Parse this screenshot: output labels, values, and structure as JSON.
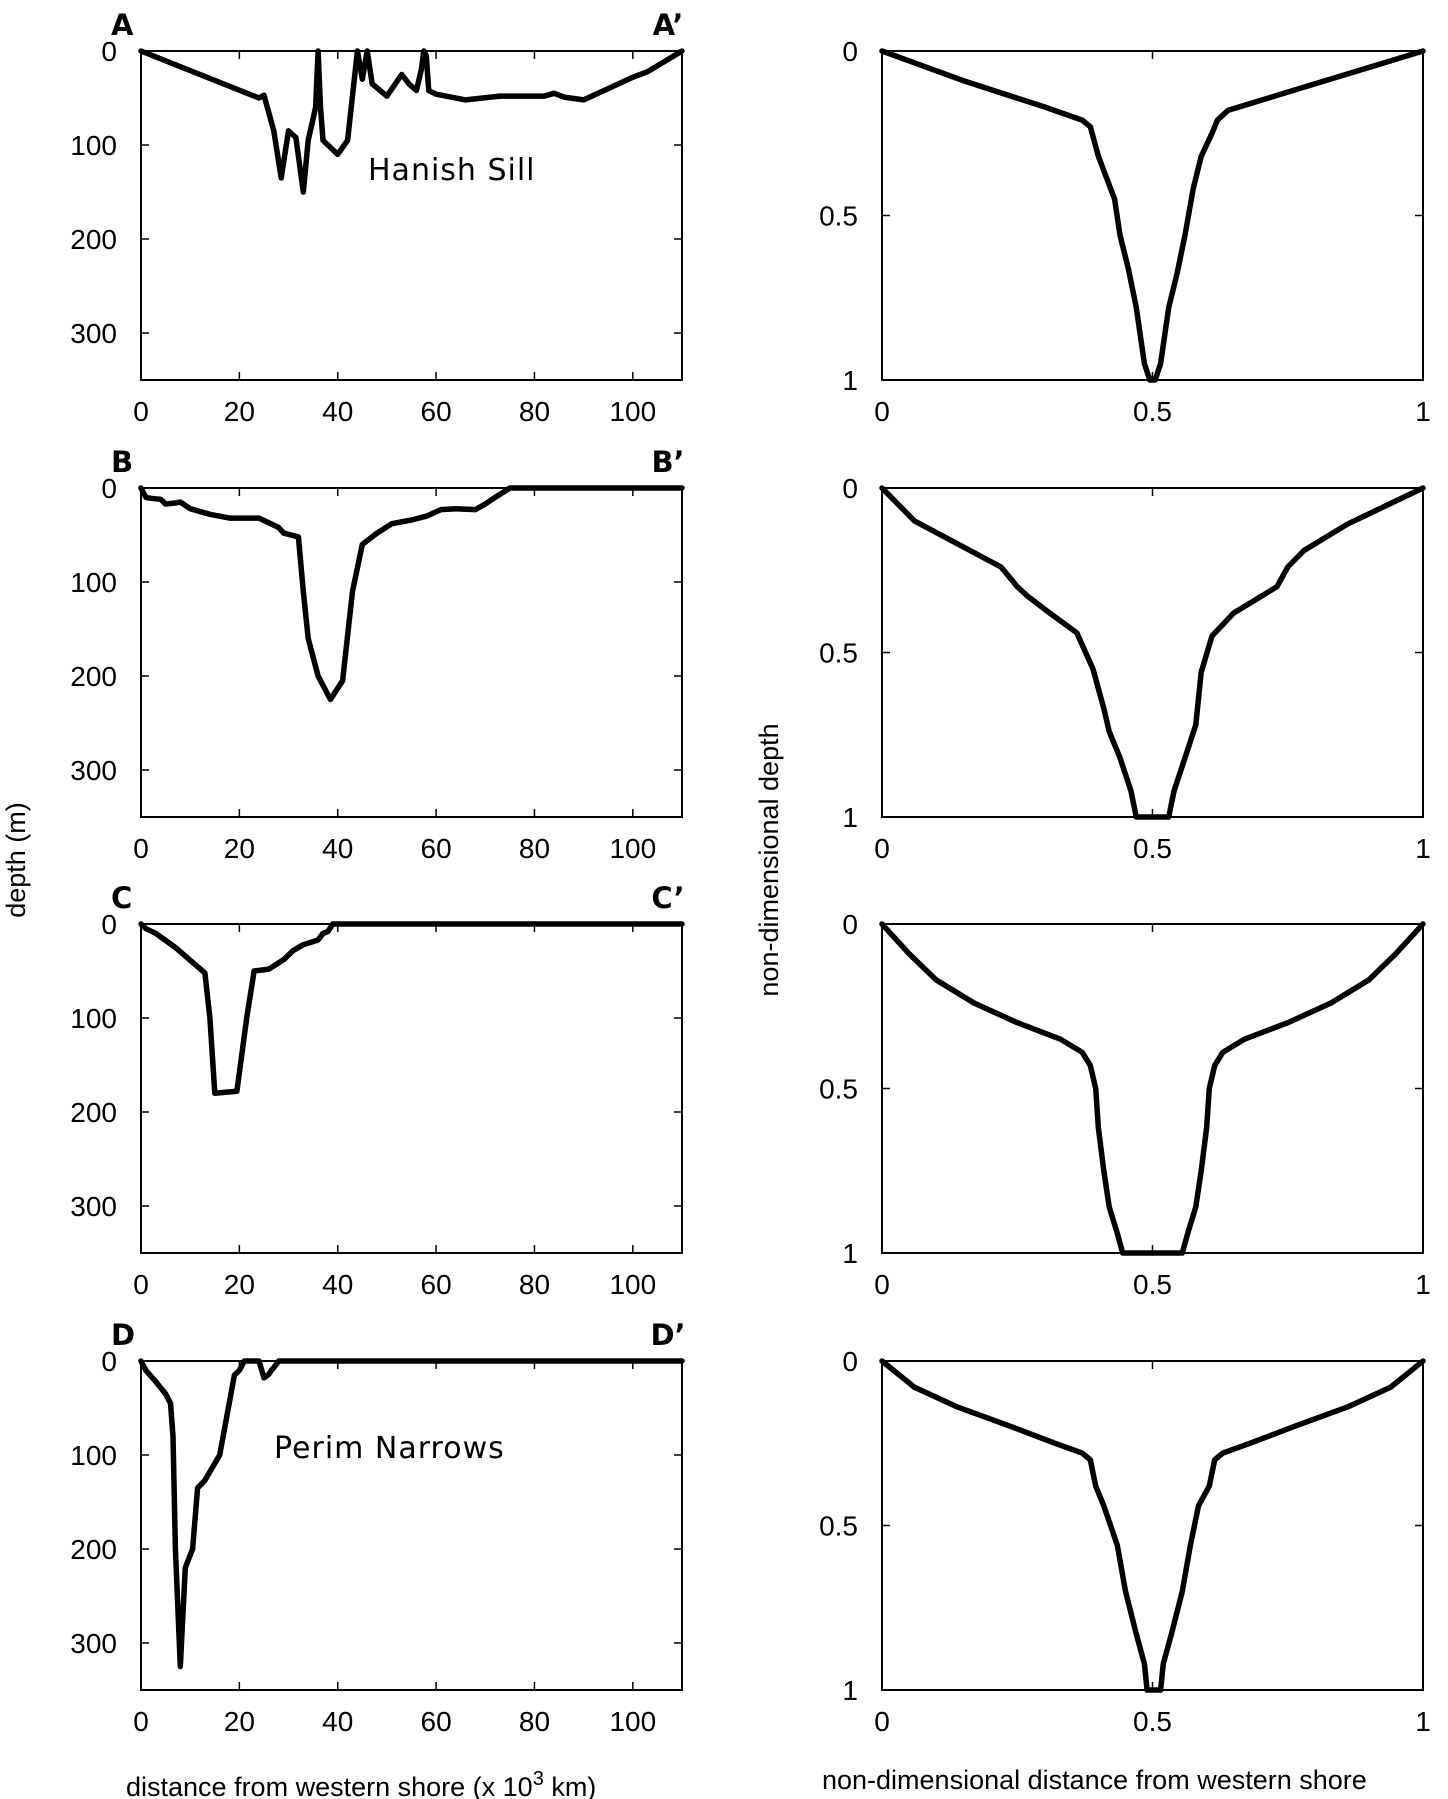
{
  "chart_data": [
    {
      "type": "line",
      "panel": "left",
      "row": 0,
      "corner_labels": [
        "A",
        "A’"
      ],
      "annotation": "Hanish Sill",
      "xlim": [
        0,
        110
      ],
      "ylim": [
        0,
        350
      ],
      "y_inverted": true,
      "x_ticks": [
        "0",
        "20",
        "40",
        "60",
        "80",
        "100"
      ],
      "y_ticks": [
        "0",
        "100",
        "200",
        "300"
      ],
      "x": [
        0,
        24,
        25,
        27,
        28.5,
        30,
        31.5,
        33,
        34,
        35.5,
        36,
        36.5,
        37,
        40,
        42,
        44,
        45,
        46,
        47,
        50,
        53,
        54.5,
        56,
        57,
        57.5,
        58,
        58.5,
        60,
        66,
        73,
        82,
        84,
        86,
        90,
        95,
        100,
        103,
        110
      ],
      "y": [
        0,
        50,
        47,
        85,
        135,
        85,
        92,
        150,
        95,
        60,
        0,
        60,
        95,
        110,
        95,
        0,
        30,
        0,
        35,
        48,
        25,
        35,
        42,
        20,
        0,
        5,
        42,
        46,
        52,
        48,
        48,
        45,
        49,
        52,
        40,
        28,
        22,
        0
      ]
    },
    {
      "type": "line",
      "panel": "right",
      "row": 0,
      "xlim": [
        0,
        1
      ],
      "ylim": [
        0,
        1
      ],
      "y_inverted": true,
      "x_ticks": [
        "0",
        "0.5",
        "1"
      ],
      "y_ticks": [
        "0",
        "0.5",
        "1"
      ],
      "x": [
        0,
        0.15,
        0.3,
        0.37,
        0.385,
        0.4,
        0.43,
        0.44,
        0.455,
        0.47,
        0.485,
        0.495,
        0.505,
        0.515,
        0.53,
        0.545,
        0.56,
        0.575,
        0.59,
        0.61,
        0.62,
        0.64,
        0.8,
        1
      ],
      "y": [
        0,
        0.09,
        0.17,
        0.21,
        0.23,
        0.32,
        0.45,
        0.56,
        0.66,
        0.78,
        0.95,
        1.0,
        1.0,
        0.95,
        0.78,
        0.68,
        0.56,
        0.42,
        0.32,
        0.25,
        0.21,
        0.18,
        0.1,
        0
      ]
    },
    {
      "type": "line",
      "panel": "left",
      "row": 1,
      "corner_labels": [
        "B",
        "B’"
      ],
      "annotation": "",
      "xlim": [
        0,
        110
      ],
      "ylim": [
        0,
        350
      ],
      "y_inverted": true,
      "x_ticks": [
        "0",
        "20",
        "40",
        "60",
        "80",
        "100"
      ],
      "y_ticks": [
        "0",
        "100",
        "200",
        "300"
      ],
      "x": [
        0,
        1,
        2,
        4,
        5,
        7,
        8,
        10,
        14,
        18,
        24,
        28,
        29,
        32,
        33,
        34,
        36,
        38.5,
        41,
        43,
        45,
        48,
        51,
        55,
        58,
        61,
        64,
        68,
        70,
        72,
        75,
        80,
        110
      ],
      "y": [
        0,
        10,
        11,
        12,
        17,
        16,
        15,
        22,
        28,
        32,
        32,
        42,
        48,
        52,
        110,
        160,
        200,
        225,
        205,
        110,
        60,
        48,
        38,
        34,
        30,
        23,
        22,
        23,
        17,
        10,
        0,
        0,
        0
      ]
    },
    {
      "type": "line",
      "panel": "right",
      "row": 1,
      "xlim": [
        0,
        1
      ],
      "ylim": [
        0,
        1
      ],
      "y_inverted": true,
      "x_ticks": [
        "0",
        "0.5",
        "1"
      ],
      "y_ticks": [
        "0",
        "0.5",
        "1"
      ],
      "x": [
        0,
        0.06,
        0.14,
        0.22,
        0.25,
        0.27,
        0.31,
        0.36,
        0.39,
        0.41,
        0.42,
        0.44,
        0.46,
        0.47,
        0.53,
        0.54,
        0.56,
        0.58,
        0.59,
        0.61,
        0.65,
        0.7,
        0.73,
        0.75,
        0.78,
        0.86,
        1
      ],
      "y": [
        0,
        0.1,
        0.17,
        0.24,
        0.3,
        0.33,
        0.38,
        0.44,
        0.55,
        0.67,
        0.74,
        0.82,
        0.92,
        1.0,
        1.0,
        0.92,
        0.82,
        0.72,
        0.56,
        0.45,
        0.38,
        0.33,
        0.3,
        0.24,
        0.19,
        0.11,
        0
      ]
    },
    {
      "type": "line",
      "panel": "left",
      "row": 2,
      "corner_labels": [
        "C",
        "C’"
      ],
      "annotation": "",
      "xlim": [
        0,
        110
      ],
      "ylim": [
        0,
        350
      ],
      "y_inverted": true,
      "x_ticks": [
        "0",
        "20",
        "40",
        "60",
        "80",
        "100"
      ],
      "y_ticks": [
        "0",
        "100",
        "200",
        "300"
      ],
      "x": [
        0,
        1,
        3,
        7,
        13,
        14,
        15,
        19.5,
        21.5,
        23,
        26,
        29,
        31,
        33,
        36,
        37,
        38,
        39,
        110
      ],
      "y": [
        0,
        5,
        10,
        25,
        52,
        100,
        180,
        178,
        100,
        50,
        48,
        38,
        28,
        22,
        17,
        10,
        8,
        0,
        0
      ]
    },
    {
      "type": "line",
      "panel": "right",
      "row": 2,
      "xlim": [
        0,
        1
      ],
      "ylim": [
        0,
        1
      ],
      "y_inverted": true,
      "x_ticks": [
        "0",
        "0.5",
        "1"
      ],
      "y_ticks": [
        "0",
        "0.5",
        "1"
      ],
      "x": [
        0,
        0.05,
        0.1,
        0.17,
        0.25,
        0.33,
        0.37,
        0.385,
        0.395,
        0.4,
        0.41,
        0.42,
        0.435,
        0.445,
        0.555,
        0.565,
        0.58,
        0.59,
        0.6,
        0.605,
        0.615,
        0.63,
        0.67,
        0.75,
        0.83,
        0.9,
        0.95,
        1
      ],
      "y": [
        0,
        0.09,
        0.17,
        0.24,
        0.3,
        0.35,
        0.39,
        0.43,
        0.5,
        0.62,
        0.75,
        0.86,
        0.94,
        1.0,
        1.0,
        0.94,
        0.86,
        0.75,
        0.62,
        0.5,
        0.43,
        0.39,
        0.35,
        0.3,
        0.24,
        0.17,
        0.09,
        0
      ]
    },
    {
      "type": "line",
      "panel": "left",
      "row": 3,
      "corner_labels": [
        "D",
        "D’"
      ],
      "annotation": "Perim Narrows",
      "xlim": [
        0,
        110
      ],
      "ylim": [
        0,
        350
      ],
      "y_inverted": true,
      "x_ticks": [
        "0",
        "20",
        "40",
        "60",
        "80",
        "100"
      ],
      "y_ticks": [
        "0",
        "100",
        "200",
        "300"
      ],
      "x": [
        0,
        1,
        3,
        5,
        6,
        6.5,
        7,
        8,
        9,
        10.5,
        11.5,
        13,
        16,
        19,
        20,
        21,
        24,
        25,
        26,
        26.5,
        27,
        28,
        110
      ],
      "y": [
        0,
        10,
        22,
        35,
        45,
        80,
        200,
        325,
        220,
        200,
        135,
        127,
        100,
        15,
        10,
        0,
        0,
        18,
        14,
        10,
        7,
        0,
        0
      ]
    },
    {
      "type": "line",
      "panel": "right",
      "row": 3,
      "xlim": [
        0,
        1
      ],
      "ylim": [
        0,
        1
      ],
      "y_inverted": true,
      "x_ticks": [
        "0",
        "0.5",
        "1"
      ],
      "y_ticks": [
        "0",
        "0.5",
        "1"
      ],
      "x": [
        0,
        0.06,
        0.14,
        0.24,
        0.32,
        0.37,
        0.385,
        0.39,
        0.395,
        0.41,
        0.435,
        0.45,
        0.47,
        0.485,
        0.49,
        0.515,
        0.52,
        0.535,
        0.555,
        0.57,
        0.585,
        0.605,
        0.61,
        0.615,
        0.63,
        0.68,
        0.76,
        0.86,
        0.94,
        1
      ],
      "y": [
        0,
        0.08,
        0.14,
        0.2,
        0.25,
        0.28,
        0.3,
        0.34,
        0.38,
        0.44,
        0.56,
        0.7,
        0.83,
        0.92,
        1.0,
        1.0,
        0.92,
        0.83,
        0.7,
        0.56,
        0.44,
        0.38,
        0.34,
        0.3,
        0.28,
        0.25,
        0.2,
        0.14,
        0.08,
        0
      ]
    }
  ],
  "axis_titles": {
    "left_x": "distance from western shore (x 10",
    "left_x_sup": "3",
    "left_x_suffix": " km)",
    "left_y": "depth (m)",
    "right_x": "non-dimensional distance from western shore",
    "right_y": "non-dimensional depth"
  }
}
